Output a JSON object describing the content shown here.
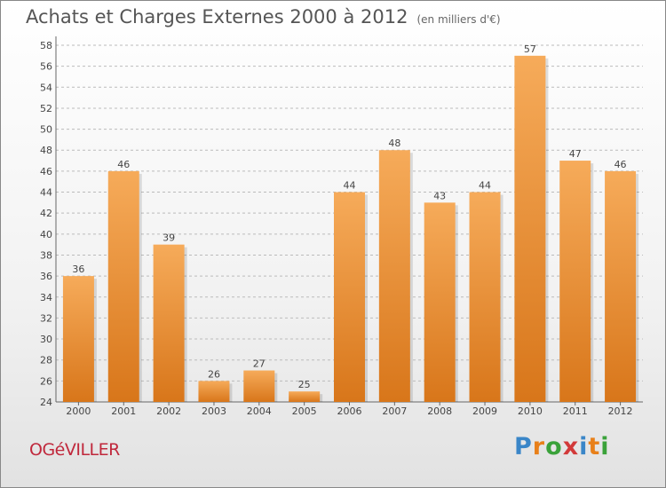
{
  "title": "Achats et Charges Externes 2000 à 2012",
  "subtitle": "(en milliers d'€)",
  "place": "OGéVILLER",
  "logo": {
    "letters": [
      "P",
      "r",
      "o",
      "x",
      "i",
      "t",
      "i"
    ],
    "colors": [
      "#3a86c8",
      "#e8801a",
      "#3aa23a",
      "#d23a3a",
      "#3a86c8",
      "#e8801a",
      "#3aa23a"
    ]
  },
  "colors": {
    "bar": "#f0902a",
    "bar_light": "#f6ab5a",
    "bar_dark": "#d8761a",
    "grid": "#bbbbbb"
  },
  "chart_data": {
    "type": "bar",
    "categories": [
      "2000",
      "2001",
      "2002",
      "2003",
      "2004",
      "2005",
      "2006",
      "2007",
      "2008",
      "2009",
      "2010",
      "2011",
      "2012"
    ],
    "values": [
      36,
      46,
      39,
      26,
      27,
      25,
      44,
      48,
      43,
      44,
      57,
      47,
      46
    ],
    "ylim": [
      24,
      58
    ],
    "yticks": [
      24,
      26,
      28,
      30,
      32,
      34,
      36,
      38,
      40,
      42,
      44,
      46,
      48,
      50,
      52,
      54,
      56,
      58
    ],
    "xlabel": "",
    "ylabel": "",
    "grid": true
  }
}
